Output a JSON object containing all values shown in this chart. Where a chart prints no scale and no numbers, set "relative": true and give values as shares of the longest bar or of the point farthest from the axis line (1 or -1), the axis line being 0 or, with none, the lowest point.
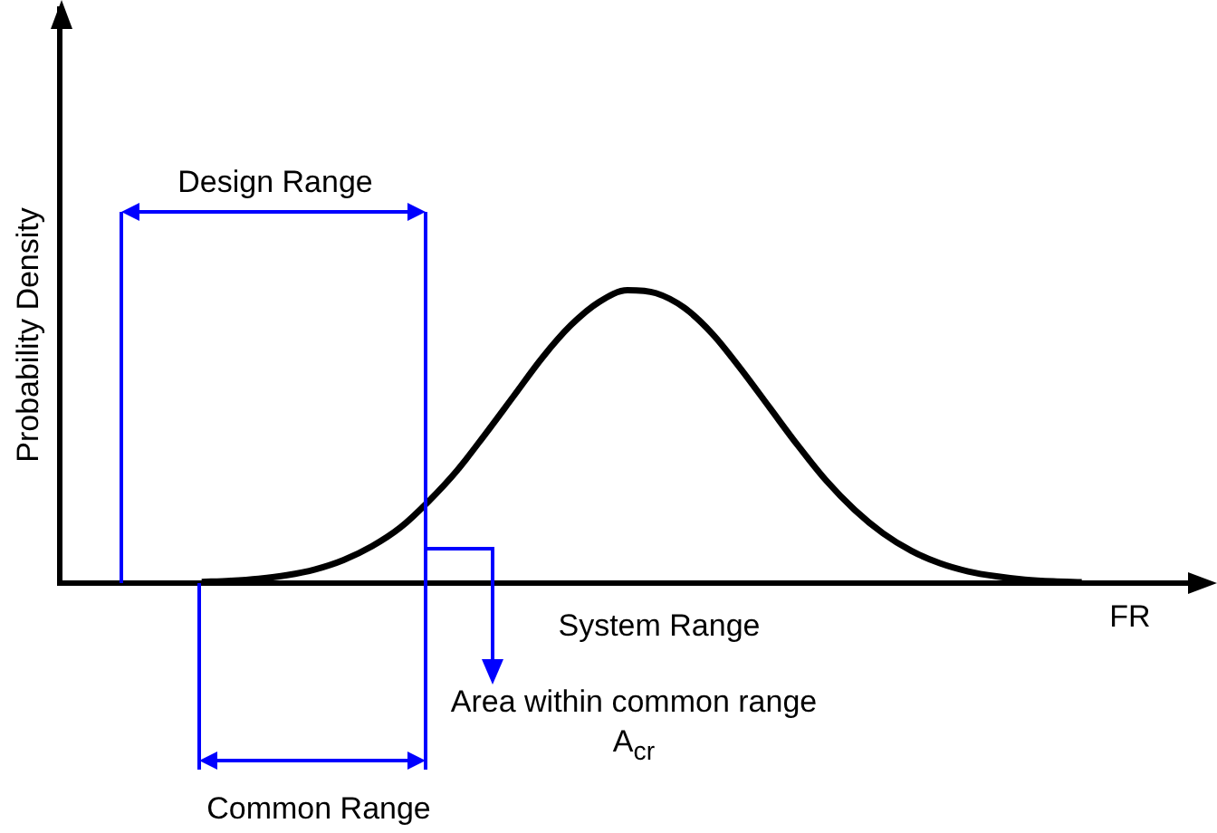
{
  "chart_data": {
    "type": "line",
    "relative": true,
    "xlabel": "FR",
    "ylabel": "Probability Density",
    "annotations": [
      "Design Range",
      "Common Range",
      "System Range",
      "Area within common range A$_{cr}$"
    ],
    "categories": [
      null,
      null,
      null,
      null,
      null,
      null,
      null,
      null,
      null,
      null,
      null,
      null,
      null,
      null,
      null,
      null,
      null,
      null,
      null,
      null,
      null,
      null,
      null,
      null,
      null,
      null,
      null,
      null,
      null,
      null,
      null,
      null,
      null,
      null,
      null,
      null,
      null,
      null,
      null,
      null,
      null
    ],
    "series": [
      {
        "color": "#000000",
        "values": [
          null,
          null,
          null,
          null,
          null,
          0.004,
          0.008,
          0.015,
          0.027,
          0.047,
          0.079,
          0.126,
          0.19,
          0.28,
          0.385,
          0.51,
          0.64,
          0.77,
          0.88,
          0.96,
          1,
          0.99,
          0.94,
          0.85,
          0.73,
          0.6,
          0.47,
          0.35,
          0.25,
          0.17,
          0.11,
          0.068,
          0.04,
          0.023,
          0.012,
          0.006,
          0.003,
          null,
          null,
          null,
          null
        ]
      }
    ]
  }
}
